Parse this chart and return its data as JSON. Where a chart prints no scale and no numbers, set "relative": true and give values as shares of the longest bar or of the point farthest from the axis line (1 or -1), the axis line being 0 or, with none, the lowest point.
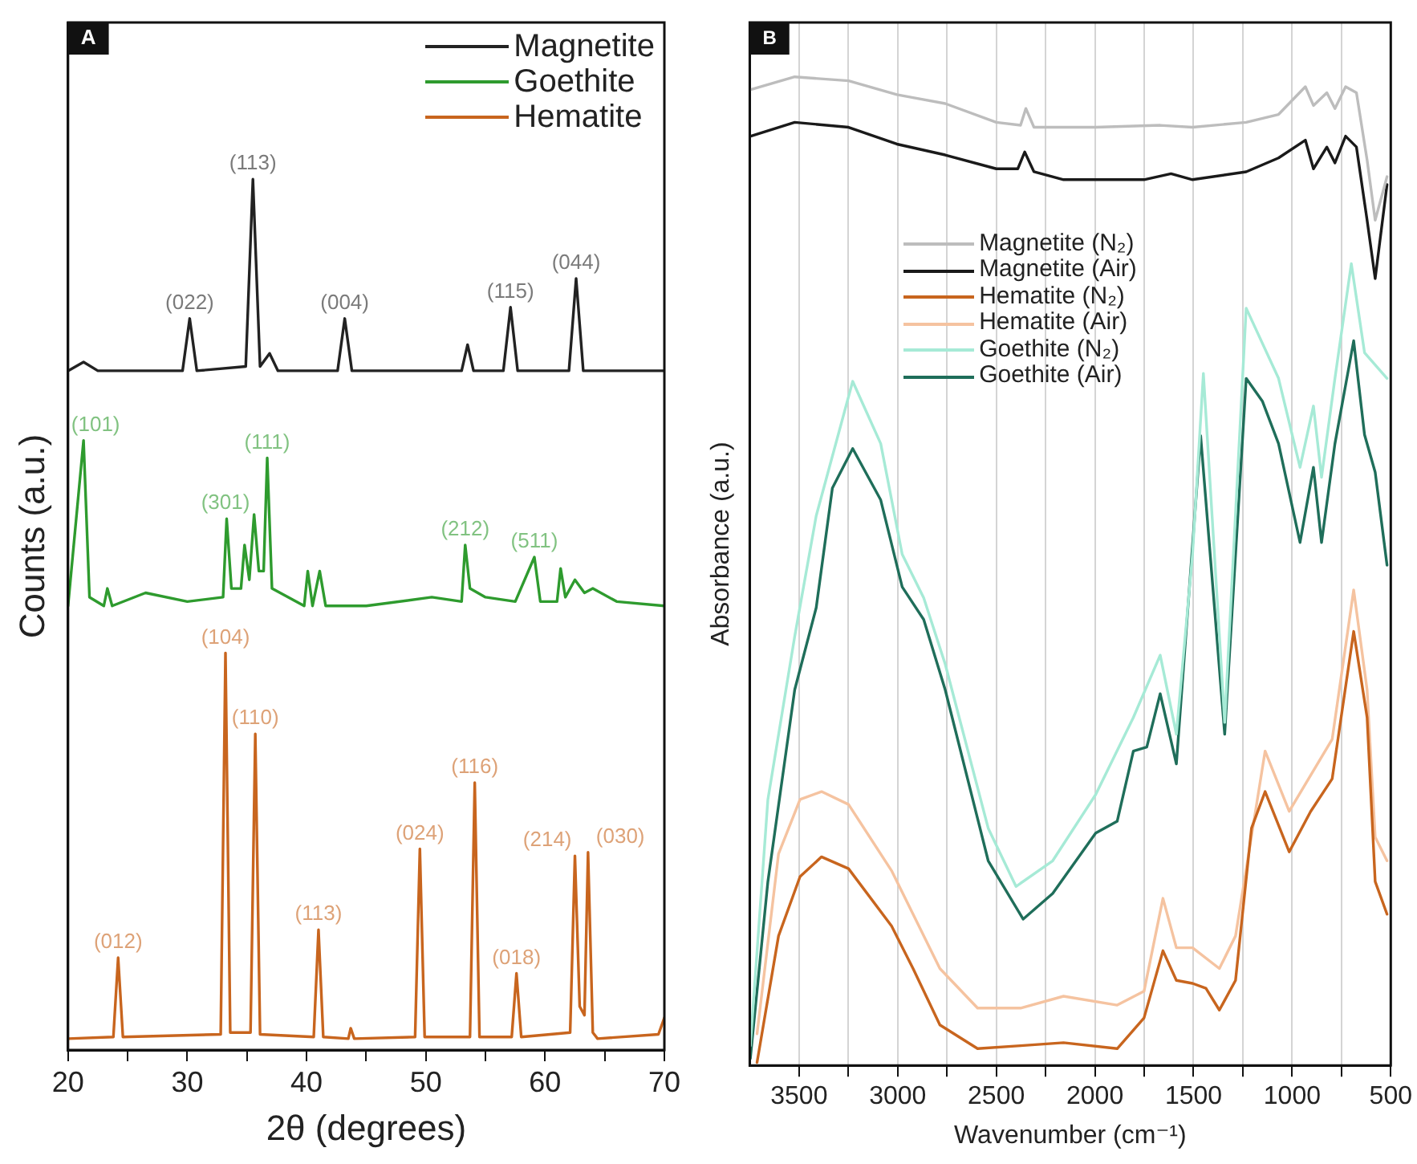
{
  "chart_data": [
    {
      "type": "line",
      "title": "A",
      "xlabel": "2θ (degrees)",
      "ylabel": "Counts (a.u.)",
      "relative": true,
      "xlim": [
        20,
        70
      ],
      "xticks": [
        20,
        {
          "value": 25,
          "label": null
        },
        30,
        {
          "value": 35,
          "label": null
        },
        40,
        {
          "value": 45,
          "label": null
        },
        50,
        {
          "value": 55,
          "label": null
        },
        60,
        {
          "value": 65,
          "label": null
        },
        70
      ],
      "grid": false,
      "legend": "top right",
      "marker": "none",
      "line_style": "solid",
      "series": [
        {
          "name": "Magnetite",
          "color": "#222222",
          "x": [
            20,
            21.3,
            22.5,
            29.6,
            30.2,
            30.8,
            34.9,
            35.5,
            36.1,
            36.9,
            37.6,
            42.6,
            43.2,
            43.8,
            53.0,
            53.5,
            54.0,
            56.5,
            57.1,
            57.7,
            62.0,
            62.6,
            63.2,
            70
          ],
          "values": [
            0.78,
            0.79,
            0.78,
            0.78,
            0.84,
            0.78,
            0.785,
            1.0,
            0.785,
            0.8,
            0.78,
            0.78,
            0.84,
            0.78,
            0.78,
            0.81,
            0.78,
            0.78,
            0.853,
            0.78,
            0.78,
            0.886,
            0.78,
            0.78
          ]
        },
        {
          "name": "Goethite",
          "color": "#2e9b2e",
          "x": [
            20,
            21.3,
            21.8,
            23.0,
            23.3,
            23.7,
            26.5,
            30,
            33.0,
            33.3,
            33.7,
            34.5,
            34.8,
            35.2,
            35.6,
            36.0,
            36.4,
            36.7,
            37.1,
            39.8,
            40.1,
            40.5,
            41.1,
            41.6,
            45,
            50.5,
            53.0,
            53.3,
            53.7,
            55,
            57.5,
            59.1,
            59.6,
            61.0,
            61.3,
            61.7,
            62.5,
            63.3,
            64,
            66,
            70
          ],
          "values": [
            0.51,
            0.7,
            0.52,
            0.51,
            0.53,
            0.51,
            0.525,
            0.515,
            0.52,
            0.61,
            0.53,
            0.53,
            0.58,
            0.54,
            0.615,
            0.55,
            0.55,
            0.68,
            0.53,
            0.51,
            0.55,
            0.51,
            0.55,
            0.51,
            0.51,
            0.52,
            0.515,
            0.58,
            0.53,
            0.52,
            0.515,
            0.566,
            0.515,
            0.515,
            0.553,
            0.52,
            0.54,
            0.525,
            0.53,
            0.515,
            0.51
          ]
        },
        {
          "name": "Hematite",
          "color": "#c8651e",
          "x": [
            20,
            23.8,
            24.2,
            24.6,
            32.8,
            33.2,
            33.6,
            35.3,
            35.7,
            36.1,
            40.6,
            41.0,
            41.4,
            43.5,
            43.7,
            44,
            49.1,
            49.5,
            49.9,
            53.7,
            54.1,
            54.5,
            57.2,
            57.6,
            58.0,
            62.1,
            62.5,
            62.9,
            63.3,
            63.6,
            64.0,
            64.4,
            69.5,
            70
          ],
          "values": [
            0.013,
            0.015,
            0.106,
            0.015,
            0.018,
            0.456,
            0.02,
            0.02,
            0.363,
            0.018,
            0.015,
            0.138,
            0.015,
            0.013,
            0.025,
            0.013,
            0.015,
            0.231,
            0.015,
            0.015,
            0.307,
            0.015,
            0.015,
            0.088,
            0.015,
            0.02,
            0.223,
            0.05,
            0.04,
            0.227,
            0.02,
            0.013,
            0.018,
            0.037
          ]
        }
      ],
      "annotations": [
        {
          "text": "(022)",
          "x": 30.2,
          "y": 0.84
        },
        {
          "text": "(113)",
          "x": 35.5,
          "y": 1.0
        },
        {
          "text": "(004)",
          "x": 43.2,
          "y": 0.84
        },
        {
          "text": "(115)",
          "x": 57.1,
          "y": 0.853
        },
        {
          "text": "(044)",
          "x": 62.6,
          "y": 0.886
        },
        {
          "text": "(101)",
          "x": 21.3,
          "y": 0.7
        },
        {
          "text": "(301)",
          "x": 33.2,
          "y": 0.61
        },
        {
          "text": "(111)",
          "x": 36.7,
          "y": 0.68
        },
        {
          "text": "(212)",
          "x": 53.3,
          "y": 0.58
        },
        {
          "text": "(511)",
          "x": 59.1,
          "y": 0.566
        },
        {
          "text": "(012)",
          "x": 24.2,
          "y": 0.106
        },
        {
          "text": "(104)",
          "x": 33.2,
          "y": 0.456
        },
        {
          "text": "(110)",
          "x": 35.7,
          "y": 0.363
        },
        {
          "text": "(113)",
          "x": 41.0,
          "y": 0.138
        },
        {
          "text": "(024)",
          "x": 49.5,
          "y": 0.231
        },
        {
          "text": "(116)",
          "x": 54.1,
          "y": 0.307
        },
        {
          "text": "(018)",
          "x": 57.6,
          "y": 0.088
        },
        {
          "text": "(214)",
          "x": 62.5,
          "y": 0.223
        },
        {
          "text": "(030)",
          "x": 64.0,
          "y": 0.227
        }
      ]
    },
    {
      "type": "line",
      "title": "B",
      "xlabel": "Wavenumber (cm⁻¹)",
      "ylabel": "Absorbance (a.u.)",
      "relative": true,
      "xlim": [
        3750,
        500
      ],
      "xticks": [
        3500,
        {
          "value": 3250,
          "label": null
        },
        3000,
        {
          "value": 2750,
          "label": null
        },
        2500,
        {
          "value": 2250,
          "label": null
        },
        2000,
        {
          "value": 1750,
          "label": null
        },
        1500,
        {
          "value": 1250,
          "label": null
        },
        1000,
        {
          "value": 750,
          "label": null
        },
        500
      ],
      "grid": "x",
      "legend": "left",
      "marker": "none",
      "line_style": "solid",
      "series": [
        {
          "name": "Magnetite (N₂)",
          "color": "#bdbdbd",
          "x": [
            3745,
            3522,
            3249,
            3004,
            2922,
            2759,
            2500,
            2377,
            2350,
            2309,
            1996,
            1669,
            1505,
            1233,
            1069,
            933,
            892,
            824,
            783,
            729,
            674,
            620,
            579,
            519
          ],
          "values": [
            0.987,
            1.0,
            0.996,
            0.982,
            0.979,
            0.973,
            0.954,
            0.951,
            0.968,
            0.949,
            0.949,
            0.951,
            0.949,
            0.954,
            0.962,
            0.99,
            0.971,
            0.984,
            0.968,
            0.99,
            0.984,
            0.916,
            0.855,
            0.899
          ]
        },
        {
          "name": "Magnetite (Air)",
          "color": "#1a1a1a",
          "x": [
            3745,
            3522,
            3249,
            3004,
            2759,
            2500,
            2391,
            2356,
            2309,
            2159,
            1751,
            1614,
            1505,
            1233,
            1069,
            933,
            892,
            824,
            783,
            729,
            674,
            620,
            579,
            519
          ],
          "values": [
            0.94,
            0.954,
            0.949,
            0.932,
            0.921,
            0.907,
            0.907,
            0.924,
            0.904,
            0.896,
            0.896,
            0.902,
            0.896,
            0.904,
            0.918,
            0.936,
            0.907,
            0.929,
            0.913,
            0.94,
            0.929,
            0.855,
            0.796,
            0.891
          ]
        },
        {
          "name": "Hematite (N₂)",
          "color": "#c8651e",
          "x": [
            3713,
            3604,
            3495,
            3386,
            3249,
            3031,
            2922,
            2786,
            2595,
            2377,
            2159,
            1887,
            1751,
            1655,
            1587,
            1505,
            1437,
            1369,
            1287,
            1206,
            1137,
            1015,
            906,
            797,
            688,
            620,
            579,
            519
          ],
          "values": [
            0.003,
            0.131,
            0.191,
            0.211,
            0.199,
            0.141,
            0.098,
            0.041,
            0.017,
            0.02,
            0.023,
            0.017,
            0.048,
            0.116,
            0.086,
            0.083,
            0.078,
            0.056,
            0.086,
            0.24,
            0.277,
            0.216,
            0.257,
            0.29,
            0.439,
            0.352,
            0.186,
            0.153
          ]
        },
        {
          "name": "Hematite (Air)",
          "color": "#f5c3a0",
          "x": [
            3713,
            3604,
            3495,
            3386,
            3249,
            3031,
            2922,
            2786,
            2595,
            2377,
            2159,
            1887,
            1751,
            1655,
            1587,
            1505,
            1369,
            1287,
            1137,
            1015,
            797,
            688,
            620,
            579,
            519
          ],
          "values": [
            0.032,
            0.214,
            0.269,
            0.277,
            0.264,
            0.197,
            0.153,
            0.098,
            0.058,
            0.058,
            0.07,
            0.061,
            0.075,
            0.169,
            0.119,
            0.119,
            0.098,
            0.131,
            0.318,
            0.257,
            0.33,
            0.481,
            0.38,
            0.231,
            0.207
          ]
        },
        {
          "name": "Goethite (N₂)",
          "color": "#a6ead6",
          "x": [
            3747,
            3658,
            3522,
            3413,
            3228,
            3086,
            2977,
            2868,
            2759,
            2541,
            2400,
            2214,
            1996,
            1805,
            1669,
            1587,
            1505,
            1450,
            1342,
            1233,
            1069,
            960,
            892,
            851,
            783,
            700,
            633,
            519
          ],
          "values": [
            0.02,
            0.269,
            0.434,
            0.556,
            0.692,
            0.629,
            0.517,
            0.473,
            0.406,
            0.24,
            0.181,
            0.207,
            0.274,
            0.352,
            0.415,
            0.335,
            0.517,
            0.7,
            0.347,
            0.766,
            0.695,
            0.605,
            0.667,
            0.595,
            0.695,
            0.811,
            0.721,
            0.695
          ]
        },
        {
          "name": "Goethite (Air)",
          "color": "#1f6e5a",
          "x": [
            3747,
            3658,
            3522,
            3413,
            3331,
            3228,
            3086,
            2977,
            2868,
            2759,
            2541,
            2364,
            2214,
            1996,
            1887,
            1805,
            1737,
            1669,
            1587,
            1464,
            1342,
            1233,
            1151,
            1069,
            960,
            892,
            851,
            783,
            688,
            633,
            579,
            519
          ],
          "values": [
            0.007,
            0.186,
            0.38,
            0.463,
            0.584,
            0.624,
            0.572,
            0.484,
            0.451,
            0.38,
            0.207,
            0.148,
            0.174,
            0.235,
            0.247,
            0.318,
            0.322,
            0.376,
            0.305,
            0.637,
            0.335,
            0.695,
            0.672,
            0.629,
            0.529,
            0.605,
            0.529,
            0.629,
            0.733,
            0.638,
            0.6,
            0.506
          ]
        }
      ]
    }
  ]
}
